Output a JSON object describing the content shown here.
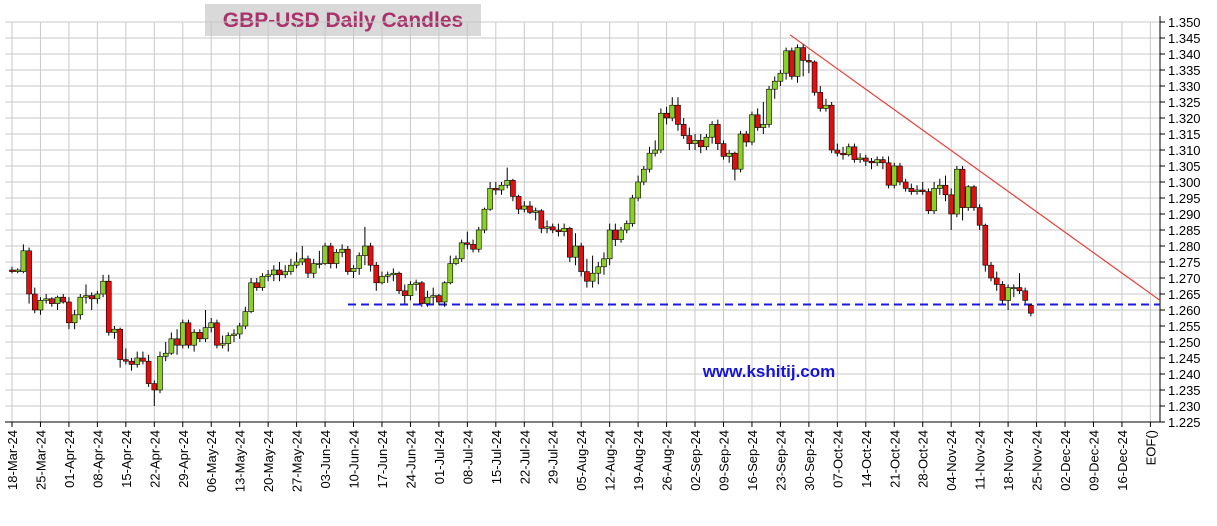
{
  "chart_data": {
    "type": "candlestick",
    "title": "GBP-USD Daily Candles",
    "annotation": "www.kshitij.com",
    "ylim": [
      1.225,
      1.35
    ],
    "yticks": [
      {
        "value": 1.225,
        "label": "1.225"
      },
      {
        "value": 1.23,
        "label": "1.230"
      },
      {
        "value": 1.235,
        "label": "1.235"
      },
      {
        "value": 1.24,
        "label": "1.240"
      },
      {
        "value": 1.245,
        "label": "1.245"
      },
      {
        "value": 1.25,
        "label": "1.250"
      },
      {
        "value": 1.255,
        "label": "1.255"
      },
      {
        "value": 1.26,
        "label": "1.260"
      },
      {
        "value": 1.265,
        "label": "1.265"
      },
      {
        "value": 1.27,
        "label": "1.270"
      },
      {
        "value": 1.275,
        "label": "1.275"
      },
      {
        "value": 1.28,
        "label": "1.280"
      },
      {
        "value": 1.285,
        "label": "1.285"
      },
      {
        "value": 1.29,
        "label": "1.290"
      },
      {
        "value": 1.295,
        "label": "1.295"
      },
      {
        "value": 1.3,
        "label": "1.300"
      },
      {
        "value": 1.305,
        "label": "1.305"
      },
      {
        "value": 1.31,
        "label": "1.310"
      },
      {
        "value": 1.315,
        "label": "1.315"
      },
      {
        "value": 1.32,
        "label": "1.320"
      },
      {
        "value": 1.325,
        "label": "1.325"
      },
      {
        "value": 1.33,
        "label": "1.330"
      },
      {
        "value": 1.335,
        "label": "1.335"
      },
      {
        "value": 1.34,
        "label": "1.340"
      },
      {
        "value": 1.345,
        "label": "1.345"
      },
      {
        "value": 1.35,
        "label": "1.350"
      }
    ],
    "xtick_labels": [
      "18-Mar-24",
      "25-Mar-24",
      "01-Apr-24",
      "08-Apr-24",
      "15-Apr-24",
      "22-Apr-24",
      "29-Apr-24",
      "06-May-24",
      "13-May-24",
      "20-May-24",
      "27-May-24",
      "03-Jun-24",
      "10-Jun-24",
      "17-Jun-24",
      "24-Jun-24",
      "01-Jul-24",
      "08-Jul-24",
      "15-Jul-24",
      "22-Jul-24",
      "29-Jul-24",
      "05-Aug-24",
      "12-Aug-24",
      "19-Aug-24",
      "26-Aug-24",
      "02-Sep-24",
      "09-Sep-24",
      "16-Sep-24",
      "23-Sep-24",
      "30-Sep-24",
      "07-Oct-24",
      "14-Oct-24",
      "21-Oct-24",
      "28-Oct-24",
      "04-Nov-24",
      "11-Nov-24",
      "18-Nov-24",
      "25-Nov-24",
      "02-Dec-24",
      "09-Dec-24",
      "16-Dec-24",
      "EOF()"
    ],
    "grid": true,
    "up_color": "#8ccf2a",
    "down_color": "#e01010",
    "trendline": {
      "values": [
        1.346,
        1.263
      ],
      "color": "#e8403a"
    },
    "support": {
      "value": 1.2617,
      "color": "#1a1ae0"
    },
    "candles": [
      [
        1.2725,
        1.2735,
        1.2715,
        1.272
      ],
      [
        1.272,
        1.273,
        1.2715,
        1.2725
      ],
      [
        1.272,
        1.2805,
        1.2715,
        1.2785
      ],
      [
        1.2785,
        1.2795,
        1.262,
        1.265
      ],
      [
        1.265,
        1.267,
        1.259,
        1.26
      ],
      [
        1.26,
        1.264,
        1.2585,
        1.263
      ],
      [
        1.263,
        1.265,
        1.262,
        1.2635
      ],
      [
        1.2635,
        1.264,
        1.261,
        1.262
      ],
      [
        1.262,
        1.2645,
        1.26,
        1.264
      ],
      [
        1.264,
        1.265,
        1.262,
        1.2625
      ],
      [
        1.2625,
        1.264,
        1.254,
        1.256
      ],
      [
        1.256,
        1.26,
        1.254,
        1.2585
      ],
      [
        1.2585,
        1.265,
        1.257,
        1.264
      ],
      [
        1.264,
        1.268,
        1.262,
        1.2645
      ],
      [
        1.2645,
        1.2655,
        1.26,
        1.2635
      ],
      [
        1.2635,
        1.266,
        1.262,
        1.265
      ],
      [
        1.265,
        1.271,
        1.264,
        1.269
      ],
      [
        1.269,
        1.271,
        1.252,
        1.253
      ],
      [
        1.253,
        1.255,
        1.251,
        1.254
      ],
      [
        1.254,
        1.2545,
        1.242,
        1.2445
      ],
      [
        1.2445,
        1.248,
        1.243,
        1.244
      ],
      [
        1.244,
        1.245,
        1.241,
        1.243
      ],
      [
        1.243,
        1.247,
        1.242,
        1.245
      ],
      [
        1.245,
        1.247,
        1.243,
        1.244
      ],
      [
        1.244,
        1.246,
        1.236,
        1.237
      ],
      [
        1.237,
        1.238,
        1.23,
        1.235
      ],
      [
        1.235,
        1.247,
        1.234,
        1.2455
      ],
      [
        1.2455,
        1.25,
        1.244,
        1.2465
      ],
      [
        1.2465,
        1.253,
        1.246,
        1.251
      ],
      [
        1.251,
        1.254,
        1.246,
        1.249
      ],
      [
        1.249,
        1.257,
        1.248,
        1.256
      ],
      [
        1.256,
        1.257,
        1.248,
        1.249
      ],
      [
        1.249,
        1.254,
        1.247,
        1.253
      ],
      [
        1.253,
        1.254,
        1.25,
        1.251
      ],
      [
        1.251,
        1.26,
        1.25,
        1.2545
      ],
      [
        1.2545,
        1.2575,
        1.253,
        1.256
      ],
      [
        1.256,
        1.257,
        1.248,
        1.249
      ],
      [
        1.249,
        1.252,
        1.248,
        1.2495
      ],
      [
        1.2495,
        1.253,
        1.247,
        1.252
      ],
      [
        1.252,
        1.254,
        1.25,
        1.2525
      ],
      [
        1.2525,
        1.256,
        1.251,
        1.255
      ],
      [
        1.255,
        1.261,
        1.254,
        1.2595
      ],
      [
        1.2595,
        1.27,
        1.259,
        1.2685
      ],
      [
        1.2685,
        1.27,
        1.266,
        1.267
      ],
      [
        1.267,
        1.2715,
        1.266,
        1.2705
      ],
      [
        1.2705,
        1.2725,
        1.269,
        1.271
      ],
      [
        1.271,
        1.274,
        1.269,
        1.2725
      ],
      [
        1.2725,
        1.275,
        1.269,
        1.271
      ],
      [
        1.271,
        1.274,
        1.27,
        1.272
      ],
      [
        1.272,
        1.276,
        1.271,
        1.274
      ],
      [
        1.274,
        1.278,
        1.273,
        1.275
      ],
      [
        1.275,
        1.28,
        1.274,
        1.276
      ],
      [
        1.276,
        1.277,
        1.27,
        1.2715
      ],
      [
        1.2715,
        1.276,
        1.27,
        1.2745
      ],
      [
        1.2745,
        1.2785,
        1.273,
        1.2745
      ],
      [
        1.2745,
        1.281,
        1.274,
        1.28
      ],
      [
        1.28,
        1.281,
        1.273,
        1.2745
      ],
      [
        1.2745,
        1.279,
        1.273,
        1.278
      ],
      [
        1.278,
        1.2805,
        1.2765,
        1.279
      ],
      [
        1.279,
        1.28,
        1.271,
        1.272
      ],
      [
        1.272,
        1.274,
        1.27,
        1.273
      ],
      [
        1.273,
        1.278,
        1.271,
        1.277
      ],
      [
        1.277,
        1.286,
        1.274,
        1.28
      ],
      [
        1.28,
        1.281,
        1.272,
        1.274
      ],
      [
        1.274,
        1.275,
        1.266,
        1.2685
      ],
      [
        1.2685,
        1.272,
        1.268,
        1.2705
      ],
      [
        1.2705,
        1.272,
        1.2685,
        1.271
      ],
      [
        1.271,
        1.273,
        1.269,
        1.2715
      ],
      [
        1.2715,
        1.272,
        1.265,
        1.266
      ],
      [
        1.266,
        1.268,
        1.262,
        1.2645
      ],
      [
        1.2645,
        1.269,
        1.263,
        1.268
      ],
      [
        1.268,
        1.2695,
        1.266,
        1.2685
      ],
      [
        1.2685,
        1.269,
        1.261,
        1.262
      ],
      [
        1.262,
        1.266,
        1.261,
        1.264
      ],
      [
        1.264,
        1.267,
        1.262,
        1.2645
      ],
      [
        1.2645,
        1.265,
        1.2615,
        1.2625
      ],
      [
        1.2625,
        1.269,
        1.261,
        1.2685
      ],
      [
        1.2685,
        1.277,
        1.268,
        1.2745
      ],
      [
        1.2745,
        1.277,
        1.274,
        1.276
      ],
      [
        1.276,
        1.282,
        1.275,
        1.281
      ],
      [
        1.281,
        1.2845,
        1.279,
        1.2805
      ],
      [
        1.2805,
        1.282,
        1.278,
        1.279
      ],
      [
        1.279,
        1.286,
        1.278,
        1.285
      ],
      [
        1.285,
        1.292,
        1.284,
        1.2915
      ],
      [
        1.2915,
        1.3,
        1.291,
        1.298
      ],
      [
        1.298,
        1.3,
        1.296,
        1.2975
      ],
      [
        1.2975,
        1.3,
        1.296,
        1.299
      ],
      [
        1.299,
        1.3045,
        1.298,
        1.3005
      ],
      [
        1.3005,
        1.301,
        1.294,
        1.2955
      ],
      [
        1.2955,
        1.296,
        1.29,
        1.2915
      ],
      [
        1.2915,
        1.294,
        1.2905,
        1.2925
      ],
      [
        1.2925,
        1.294,
        1.29,
        1.2905
      ],
      [
        1.2905,
        1.292,
        1.288,
        1.291
      ],
      [
        1.291,
        1.2915,
        1.284,
        1.2855
      ],
      [
        1.2855,
        1.288,
        1.284,
        1.286
      ],
      [
        1.286,
        1.287,
        1.284,
        1.285
      ],
      [
        1.285,
        1.287,
        1.283,
        1.2845
      ],
      [
        1.2845,
        1.287,
        1.283,
        1.2855
      ],
      [
        1.2855,
        1.286,
        1.275,
        1.2765
      ],
      [
        1.2765,
        1.284,
        1.274,
        1.28
      ],
      [
        1.28,
        1.281,
        1.2705,
        1.272
      ],
      [
        1.272,
        1.276,
        1.267,
        1.269
      ],
      [
        1.269,
        1.277,
        1.267,
        1.2715
      ],
      [
        1.2715,
        1.275,
        1.268,
        1.2735
      ],
      [
        1.2735,
        1.278,
        1.271,
        1.276
      ],
      [
        1.276,
        1.287,
        1.274,
        1.285
      ],
      [
        1.285,
        1.287,
        1.28,
        1.282
      ],
      [
        1.282,
        1.286,
        1.281,
        1.285
      ],
      [
        1.285,
        1.288,
        1.284,
        1.287
      ],
      [
        1.287,
        1.296,
        1.286,
        1.295
      ],
      [
        1.295,
        1.302,
        1.294,
        1.3
      ],
      [
        1.3,
        1.305,
        1.299,
        1.304
      ],
      [
        1.304,
        1.311,
        1.303,
        1.309
      ],
      [
        1.309,
        1.313,
        1.308,
        1.31
      ],
      [
        1.31,
        1.323,
        1.309,
        1.3215
      ],
      [
        1.3215,
        1.3235,
        1.318,
        1.32
      ],
      [
        1.32,
        1.3265,
        1.319,
        1.324
      ],
      [
        1.324,
        1.3265,
        1.316,
        1.318
      ],
      [
        1.318,
        1.32,
        1.3135,
        1.3145
      ],
      [
        1.3145,
        1.317,
        1.31,
        1.312
      ],
      [
        1.312,
        1.315,
        1.31,
        1.313
      ],
      [
        1.313,
        1.315,
        1.309,
        1.311
      ],
      [
        1.311,
        1.315,
        1.31,
        1.314
      ],
      [
        1.314,
        1.319,
        1.312,
        1.318
      ],
      [
        1.318,
        1.3195,
        1.31,
        1.312
      ],
      [
        1.312,
        1.313,
        1.307,
        1.308
      ],
      [
        1.308,
        1.31,
        1.306,
        1.309
      ],
      [
        1.309,
        1.3095,
        1.3005,
        1.304
      ],
      [
        1.304,
        1.316,
        1.303,
        1.315
      ],
      [
        1.315,
        1.316,
        1.311,
        1.3125
      ],
      [
        1.3125,
        1.322,
        1.3115,
        1.321
      ],
      [
        1.321,
        1.323,
        1.316,
        1.317
      ],
      [
        1.317,
        1.325,
        1.315,
        1.318
      ],
      [
        1.318,
        1.33,
        1.317,
        1.329
      ],
      [
        1.329,
        1.333,
        1.326,
        1.3315
      ],
      [
        1.3315,
        1.335,
        1.33,
        1.334
      ],
      [
        1.334,
        1.342,
        1.332,
        1.341
      ],
      [
        1.341,
        1.342,
        1.332,
        1.333
      ],
      [
        1.333,
        1.343,
        1.331,
        1.342
      ],
      [
        1.342,
        1.343,
        1.333,
        1.338
      ],
      [
        1.338,
        1.34,
        1.334,
        1.3375
      ],
      [
        1.3375,
        1.338,
        1.327,
        1.328
      ],
      [
        1.328,
        1.33,
        1.322,
        1.323
      ],
      [
        1.323,
        1.326,
        1.322,
        1.324
      ],
      [
        1.324,
        1.325,
        1.309,
        1.31
      ],
      [
        1.31,
        1.312,
        1.308,
        1.309
      ],
      [
        1.309,
        1.311,
        1.307,
        1.3085
      ],
      [
        1.3085,
        1.312,
        1.308,
        1.311
      ],
      [
        1.311,
        1.312,
        1.306,
        1.307
      ],
      [
        1.307,
        1.309,
        1.306,
        1.3075
      ],
      [
        1.3075,
        1.3085,
        1.305,
        1.3065
      ],
      [
        1.3065,
        1.3075,
        1.304,
        1.306
      ],
      [
        1.306,
        1.308,
        1.305,
        1.307
      ],
      [
        1.307,
        1.308,
        1.304,
        1.306
      ],
      [
        1.306,
        1.308,
        1.298,
        1.299
      ],
      [
        1.299,
        1.306,
        1.298,
        1.305
      ],
      [
        1.305,
        1.306,
        1.299,
        1.3
      ],
      [
        1.3,
        1.301,
        1.297,
        1.298
      ],
      [
        1.298,
        1.2995,
        1.296,
        1.297
      ],
      [
        1.297,
        1.299,
        1.296,
        1.2975
      ],
      [
        1.2975,
        1.3,
        1.296,
        1.297
      ],
      [
        1.297,
        1.298,
        1.29,
        1.291
      ],
      [
        1.291,
        1.3,
        1.29,
        1.298
      ],
      [
        1.298,
        1.301,
        1.296,
        1.299
      ],
      [
        1.299,
        1.302,
        1.294,
        1.296
      ],
      [
        1.296,
        1.298,
        1.285,
        1.29
      ],
      [
        1.29,
        1.305,
        1.289,
        1.304
      ],
      [
        1.304,
        1.305,
        1.288,
        1.292
      ],
      [
        1.292,
        1.299,
        1.291,
        1.2985
      ],
      [
        1.2985,
        1.299,
        1.291,
        1.292
      ],
      [
        1.292,
        1.293,
        1.285,
        1.2865
      ],
      [
        1.2865,
        1.287,
        1.272,
        1.274
      ],
      [
        1.274,
        1.275,
        1.269,
        1.27
      ],
      [
        1.27,
        1.272,
        1.266,
        1.268
      ],
      [
        1.268,
        1.269,
        1.262,
        1.263
      ],
      [
        1.263,
        1.268,
        1.26,
        1.267
      ],
      [
        1.267,
        1.268,
        1.264,
        1.267
      ],
      [
        1.267,
        1.2715,
        1.265,
        1.266
      ],
      [
        1.266,
        1.267,
        1.262,
        1.263
      ],
      [
        1.2615,
        1.262,
        1.258,
        1.259
      ]
    ]
  }
}
